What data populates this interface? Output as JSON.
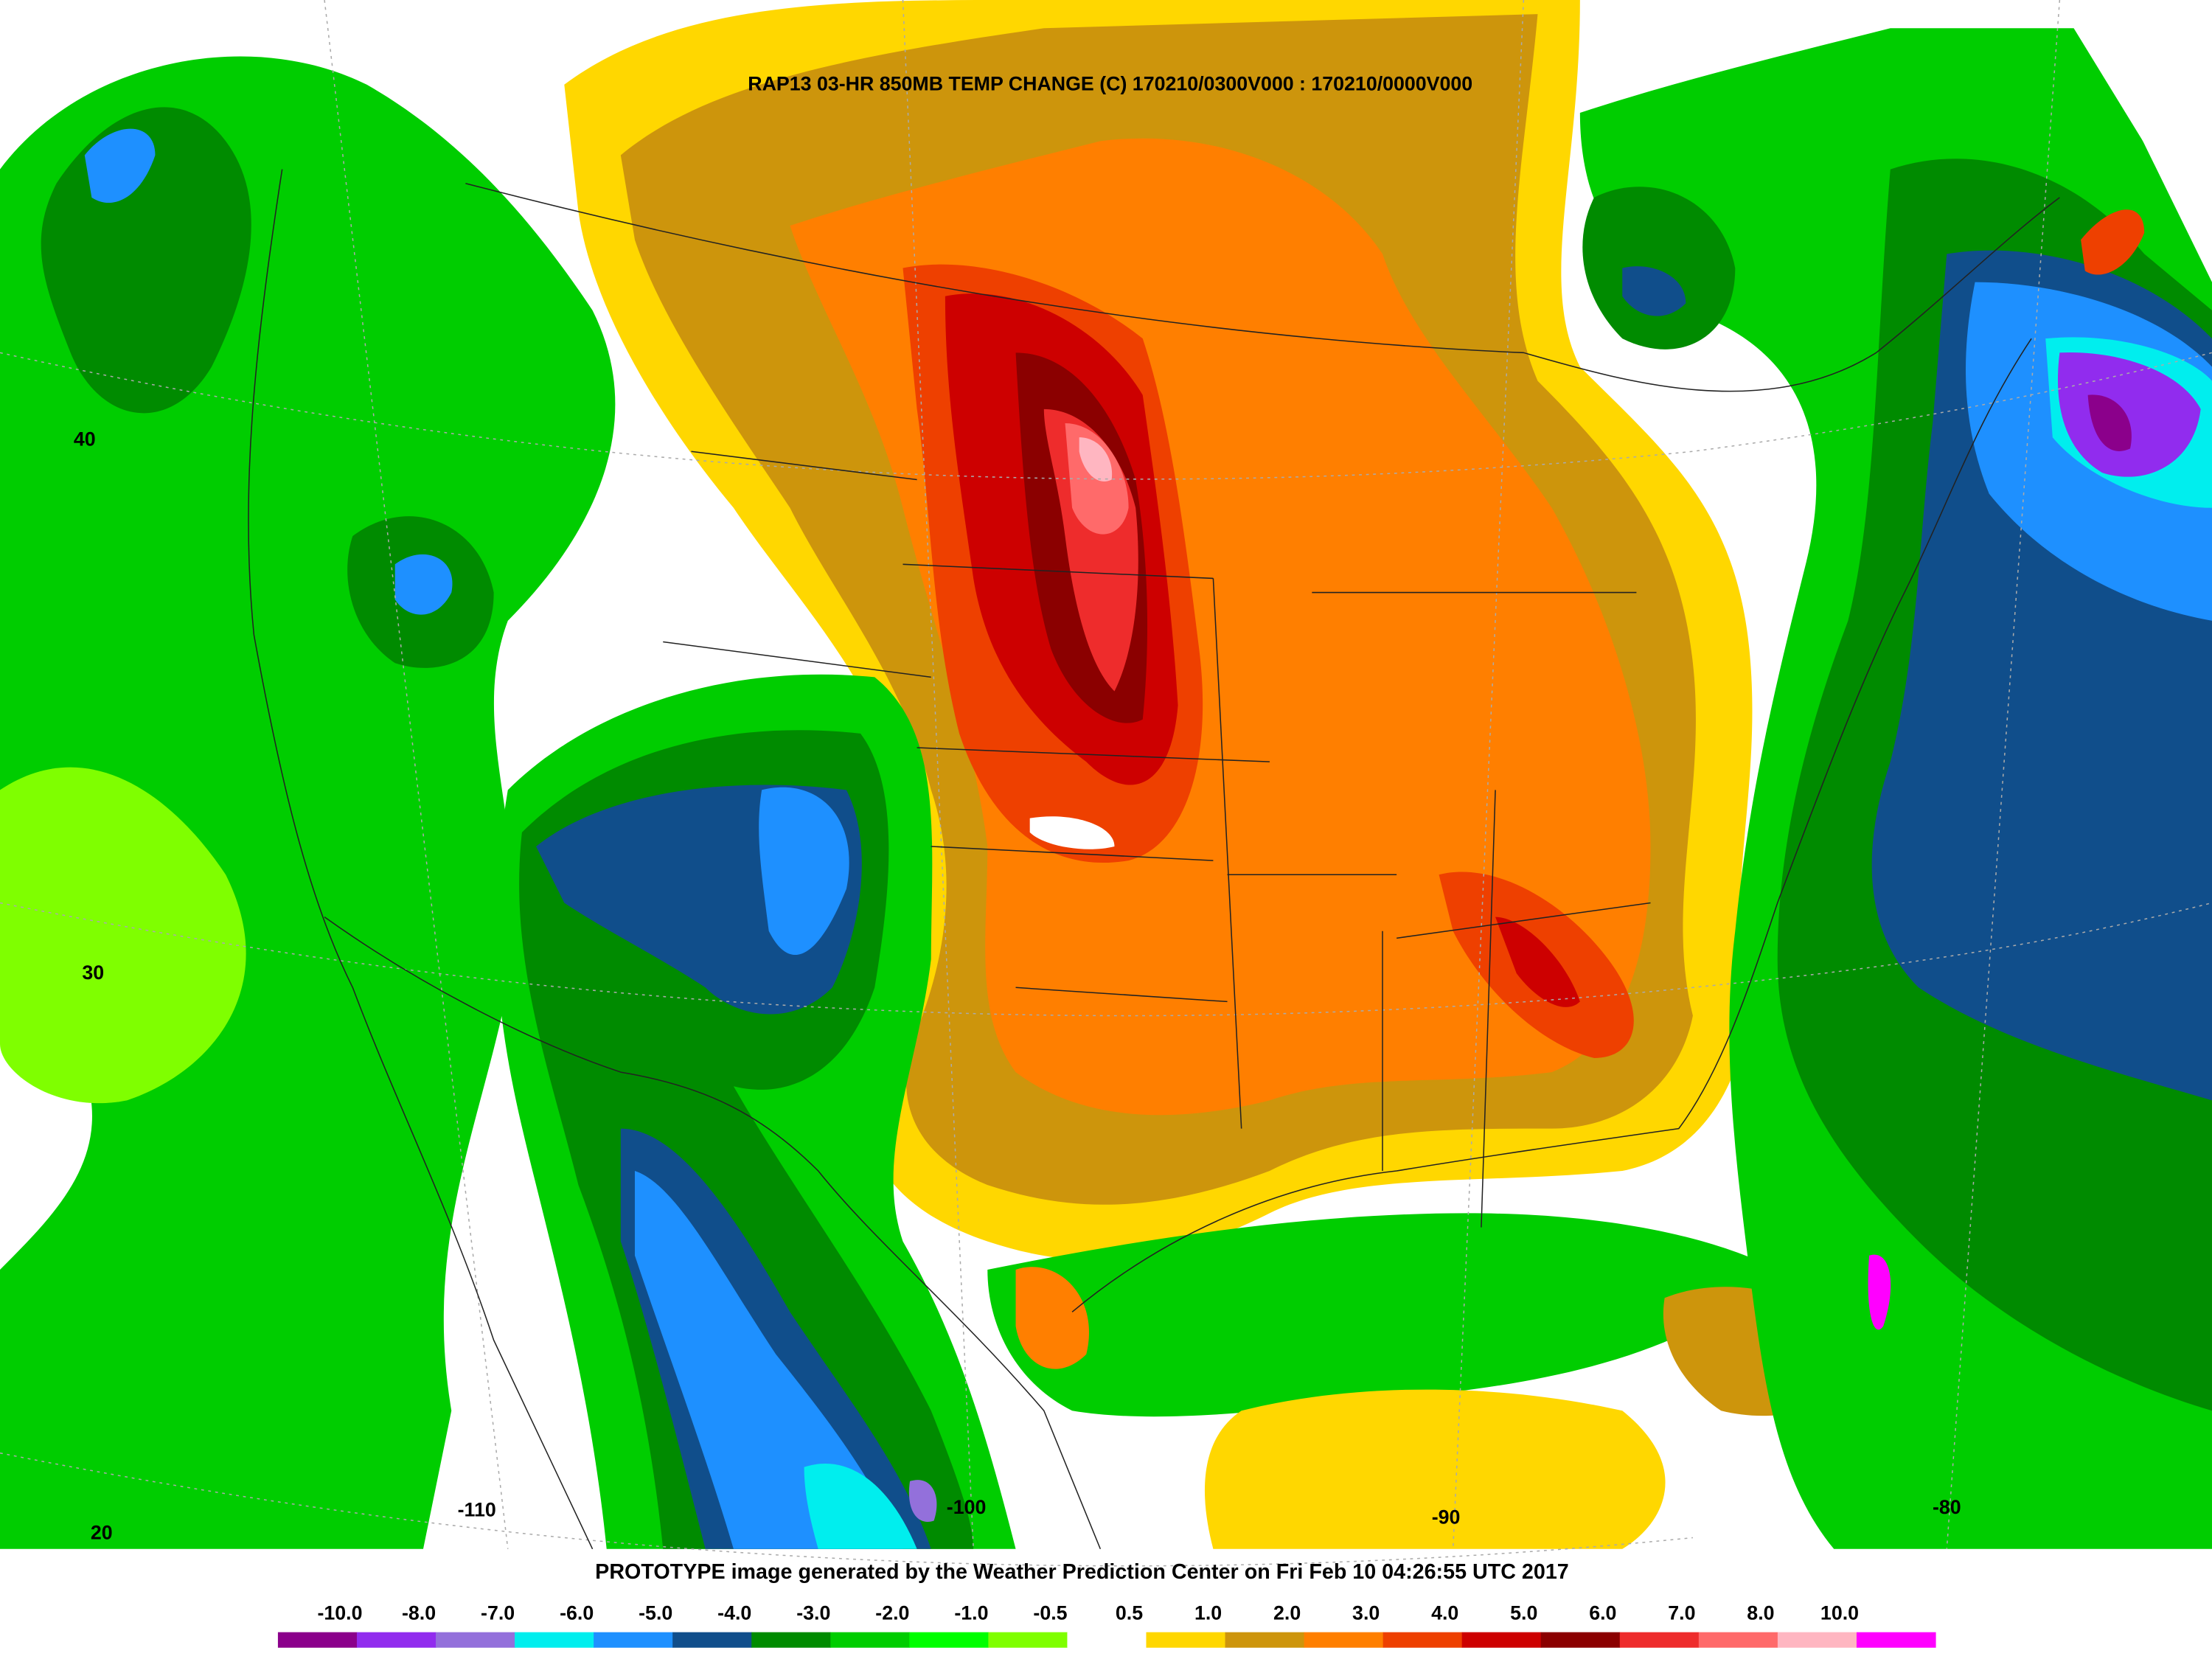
{
  "header": {
    "title": "RAP13 03-HR 850MB TEMP CHANGE (C) 170210/0300V000 : 170210/0000V000"
  },
  "latitude_labels": [
    "40",
    "30",
    "20"
  ],
  "longitude_labels": [
    "-110",
    "-100",
    "-90",
    "-80"
  ],
  "footer": {
    "text": "PROTOTYPE image generated by the Weather Prediction Center on Fri Feb 10 04:26:55 UTC 2017"
  },
  "colorbar": {
    "labels": [
      "-10.0",
      "-8.0",
      "-7.0",
      "-6.0",
      "-5.0",
      "-4.0",
      "-3.0",
      "-2.0",
      "-1.0",
      "-0.5",
      "0.5",
      "1.0",
      "2.0",
      "3.0",
      "4.0",
      "5.0",
      "6.0",
      "7.0",
      "8.0",
      "10.0"
    ],
    "colors": [
      "#8b008b",
      "#912cee",
      "#9370db",
      "#00eeee",
      "#1e90ff",
      "#104e8b",
      "#008b00",
      "#00cd00",
      "#00ff00",
      "#7fff00",
      "#ffffff",
      "#ffd700",
      "#cd950c",
      "#ff7f00",
      "#ee4000",
      "#cd0000",
      "#8b0000",
      "#ee2c2c",
      "#ff6a6a",
      "#ffb6c1",
      "#ff00ff"
    ]
  }
}
